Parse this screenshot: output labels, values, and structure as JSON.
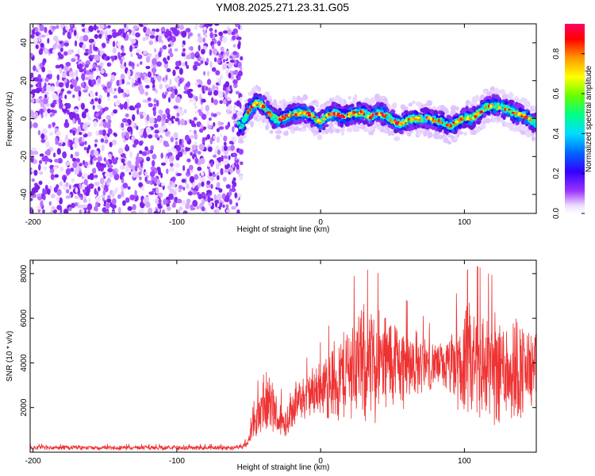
{
  "title": "YM08.2025.271.23.31.G05",
  "chart_data": [
    {
      "type": "heatmap",
      "xlabel": "Height of straight line (km)",
      "ylabel": "Frequency (Hz)",
      "xlim": [
        -202,
        150
      ],
      "ylim": [
        -50,
        50
      ],
      "xticks": [
        -200,
        -100,
        0,
        100
      ],
      "yticks": [
        -40,
        -20,
        0,
        20,
        40
      ],
      "noise_region_x": [
        -202,
        -55
      ],
      "signal_region_x": [
        -60,
        150
      ],
      "frequency_track": {
        "x": [
          -60,
          -55,
          -50,
          -45,
          -40,
          -35,
          -30,
          -25,
          -20,
          -15,
          -10,
          -5,
          0,
          5,
          10,
          15,
          20,
          25,
          30,
          35,
          40,
          45,
          50,
          55,
          60,
          65,
          70,
          75,
          80,
          85,
          90,
          95,
          100,
          105,
          110,
          115,
          120,
          125,
          130,
          135,
          140,
          145,
          150
        ],
        "y": [
          -2,
          -4,
          4,
          8,
          7,
          2,
          -1,
          1,
          2,
          3,
          3,
          1,
          -2,
          2,
          3,
          1,
          2,
          3,
          3,
          1,
          3,
          2,
          -1,
          -3,
          -1,
          0,
          0,
          0,
          -1,
          -2,
          -4,
          -2,
          1,
          0,
          3,
          6,
          7,
          6,
          5,
          3,
          2,
          0,
          -3
        ]
      },
      "colorbar": {
        "label": "Normalized spectral amplitude",
        "range": [
          0,
          0.95
        ],
        "ticks": [
          0.0,
          0.2,
          0.4,
          0.6,
          0.8
        ],
        "tick_labels": [
          "0.0",
          "0.2",
          "0.4",
          "0.6",
          "0.8"
        ]
      }
    },
    {
      "type": "line",
      "xlabel": "Height of straight line (km)",
      "ylabel": "SNR (10 * v/v)",
      "xlim": [
        -202,
        150
      ],
      "ylim": [
        0,
        8600
      ],
      "xticks": [
        -200,
        -100,
        0,
        100
      ],
      "yticks": [
        2000,
        4000,
        6000,
        8000
      ],
      "color": "#ee3333",
      "series": [
        {
          "name": "SNR",
          "x": [
            -202,
            -180,
            -160,
            -140,
            -120,
            -100,
            -80,
            -60,
            -55,
            -50,
            -45,
            -40,
            -35,
            -30,
            -25,
            -20,
            -15,
            -10,
            -5,
            0,
            5,
            10,
            15,
            20,
            25,
            30,
            35,
            40,
            45,
            50,
            55,
            60,
            65,
            70,
            75,
            80,
            85,
            90,
            95,
            100,
            105,
            110,
            115,
            120,
            125,
            130,
            135,
            140,
            145,
            150
          ],
          "base": [
            200,
            200,
            200,
            200,
            200,
            200,
            200,
            200,
            300,
            500,
            1400,
            2000,
            2200,
            1500,
            1300,
            2000,
            2300,
            2500,
            2700,
            2900,
            3000,
            3200,
            3400,
            3800,
            4000,
            3950,
            3900,
            3950,
            4000,
            4050,
            4000,
            3900,
            3950,
            4000,
            3950,
            3900,
            3850,
            3800,
            3850,
            3900,
            3950,
            3900,
            3800,
            3850,
            3900,
            3850,
            3800,
            3750,
            3700,
            3700
          ],
          "amp": [
            100,
            100,
            100,
            100,
            100,
            100,
            100,
            100,
            150,
            300,
            800,
            1400,
            1300,
            900,
            800,
            900,
            900,
            1000,
            1100,
            1200,
            1500,
            1900,
            2000,
            2200,
            2400,
            2500,
            2500,
            2400,
            2300,
            2100,
            1900,
            1700,
            1500,
            1300,
            1100,
            1000,
            1000,
            1300,
            2000,
            2400,
            2600,
            2600,
            2500,
            2400,
            2500,
            2500,
            2400,
            2200,
            1800,
            1500
          ]
        }
      ]
    }
  ]
}
